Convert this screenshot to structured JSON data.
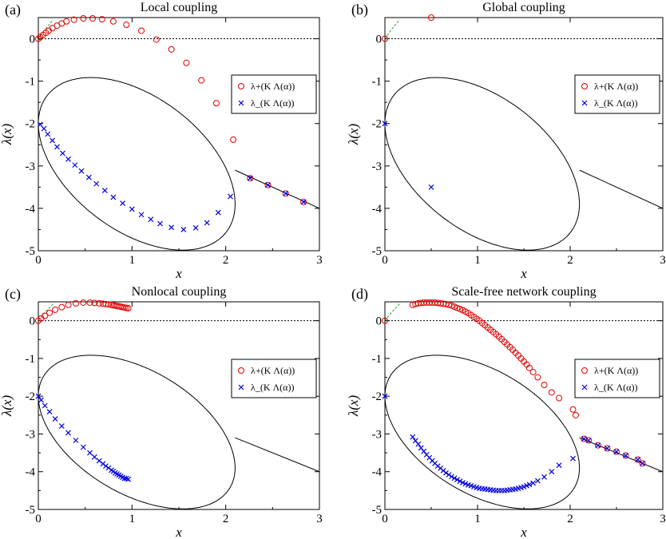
{
  "chart_data": [
    {
      "type": "scatter",
      "panel_label": "(a)",
      "title": "Local coupling",
      "xlabel": "x",
      "ylabel": "λ(x)",
      "xlim": [
        0,
        3
      ],
      "ylim": [
        -5,
        0.5
      ],
      "xticks": [
        "0",
        "1",
        "2",
        "3"
      ],
      "yticks": [
        "0",
        "-1",
        "-2",
        "-3",
        "-4",
        "-5"
      ],
      "legend_position": "right",
      "series": [
        {
          "name": "λ+(K Λ(α))",
          "marker": "circle",
          "color": "#e00000",
          "x": [
            0.0,
            0.02,
            0.05,
            0.08,
            0.11,
            0.15,
            0.2,
            0.25,
            0.3,
            0.38,
            0.48,
            0.58,
            0.68,
            0.8,
            0.94,
            1.1,
            1.26,
            1.42,
            1.58,
            1.74,
            1.9,
            2.08,
            2.26,
            2.45,
            2.64,
            2.83
          ],
          "y": [
            0.0,
            0.04,
            0.09,
            0.14,
            0.19,
            0.25,
            0.31,
            0.36,
            0.41,
            0.45,
            0.48,
            0.48,
            0.46,
            0.41,
            0.33,
            0.19,
            -0.02,
            -0.25,
            -0.57,
            -0.98,
            -1.52,
            -2.38,
            -3.29,
            -3.45,
            -3.65,
            -3.85
          ]
        },
        {
          "name": "λ_(K Λ(α))",
          "marker": "x",
          "color": "#0000e0",
          "x": [
            0.02,
            0.06,
            0.1,
            0.15,
            0.2,
            0.26,
            0.32,
            0.39,
            0.46,
            0.54,
            0.62,
            0.71,
            0.8,
            0.9,
            1.0,
            1.1,
            1.2,
            1.3,
            1.42,
            1.55,
            1.68,
            1.8,
            1.92,
            2.05,
            2.26,
            2.45,
            2.64,
            2.83
          ],
          "y": [
            -2.02,
            -2.12,
            -2.25,
            -2.4,
            -2.55,
            -2.7,
            -2.84,
            -2.98,
            -3.12,
            -3.27,
            -3.42,
            -3.58,
            -3.74,
            -3.88,
            -4.02,
            -4.15,
            -4.26,
            -4.36,
            -4.45,
            -4.5,
            -4.46,
            -4.34,
            -4.1,
            -3.72,
            -3.29,
            -3.45,
            -3.65,
            -3.85
          ]
        }
      ]
    },
    {
      "type": "scatter",
      "panel_label": "(b)",
      "title": "Global coupling",
      "xlabel": "x",
      "ylabel": "λ(x)",
      "xlim": [
        0,
        3
      ],
      "ylim": [
        -5,
        0.5
      ],
      "xticks": [
        "0",
        "1",
        "2",
        "3"
      ],
      "yticks": [
        "0",
        "-1",
        "-2",
        "-3",
        "-4",
        "-5"
      ],
      "legend_position": "right",
      "series": [
        {
          "name": "λ+(K Λ(α))",
          "marker": "circle",
          "color": "#e00000",
          "x": [
            0.0,
            0.5
          ],
          "y": [
            0.0,
            0.5
          ]
        },
        {
          "name": "λ_(K Λ(α))",
          "marker": "x",
          "color": "#0000e0",
          "x": [
            0.0,
            0.5
          ],
          "y": [
            -2.0,
            -3.5
          ]
        }
      ]
    },
    {
      "type": "scatter",
      "panel_label": "(c)",
      "title": "Nonlocal coupling",
      "xlabel": "x",
      "ylabel": "λ(x)",
      "xlim": [
        0,
        3
      ],
      "ylim": [
        -5,
        0.5
      ],
      "xticks": [
        "0",
        "1",
        "2",
        "3"
      ],
      "yticks": [
        "0",
        "-1",
        "-2",
        "-3",
        "-4",
        "-5"
      ],
      "legend_position": "right",
      "series": [
        {
          "name": "λ+(K Λ(α))",
          "marker": "circle",
          "color": "#e00000",
          "x": [
            0.0,
            0.03,
            0.07,
            0.12,
            0.18,
            0.25,
            0.32,
            0.4,
            0.48,
            0.55,
            0.6,
            0.65,
            0.69,
            0.72,
            0.75,
            0.78,
            0.8,
            0.82,
            0.84,
            0.86,
            0.88,
            0.9,
            0.92,
            0.94,
            0.96
          ],
          "y": [
            0.0,
            0.06,
            0.13,
            0.21,
            0.29,
            0.36,
            0.42,
            0.46,
            0.48,
            0.48,
            0.47,
            0.46,
            0.45,
            0.44,
            0.43,
            0.42,
            0.41,
            0.4,
            0.39,
            0.38,
            0.37,
            0.36,
            0.35,
            0.34,
            0.33
          ]
        },
        {
          "name": "λ_(K Λ(α))",
          "marker": "x",
          "color": "#0000e0",
          "x": [
            0.0,
            0.03,
            0.07,
            0.12,
            0.18,
            0.25,
            0.32,
            0.4,
            0.48,
            0.55,
            0.6,
            0.65,
            0.69,
            0.72,
            0.75,
            0.78,
            0.8,
            0.82,
            0.84,
            0.86,
            0.88,
            0.9,
            0.92,
            0.94,
            0.96
          ],
          "y": [
            -2.0,
            -2.1,
            -2.25,
            -2.41,
            -2.6,
            -2.79,
            -2.97,
            -3.17,
            -3.35,
            -3.5,
            -3.61,
            -3.71,
            -3.79,
            -3.85,
            -3.9,
            -3.96,
            -3.99,
            -4.03,
            -4.06,
            -4.09,
            -4.12,
            -4.15,
            -4.18,
            -4.18,
            -4.2
          ]
        }
      ]
    },
    {
      "type": "scatter",
      "panel_label": "(d)",
      "title": "Scale-free network coupling",
      "xlabel": "x",
      "ylabel": "λ(x)",
      "xlim": [
        0,
        3
      ],
      "ylim": [
        -5,
        0.5
      ],
      "xticks": [
        "0",
        "1",
        "2",
        "3"
      ],
      "yticks": [
        "0",
        "-1",
        "-2",
        "-3",
        "-4",
        "-5"
      ],
      "legend_position": "right",
      "series": [
        {
          "name": "λ+(K Λ(α))",
          "marker": "circle",
          "color": "#e00000",
          "x": [
            0.0,
            0.3,
            0.33,
            0.36,
            0.39,
            0.42,
            0.45,
            0.48,
            0.51,
            0.54,
            0.57,
            0.6,
            0.63,
            0.66,
            0.69,
            0.72,
            0.75,
            0.78,
            0.81,
            0.84,
            0.87,
            0.9,
            0.93,
            0.96,
            0.99,
            1.02,
            1.05,
            1.08,
            1.11,
            1.14,
            1.17,
            1.2,
            1.23,
            1.26,
            1.29,
            1.32,
            1.35,
            1.38,
            1.41,
            1.44,
            1.47,
            1.5,
            1.53,
            1.56,
            1.6,
            1.65,
            1.72,
            1.8,
            1.88,
            2.03,
            2.06,
            2.15,
            2.2,
            2.3,
            2.4,
            2.5,
            2.6,
            2.73,
            2.78
          ],
          "y": [
            0.0,
            0.42,
            0.44,
            0.46,
            0.47,
            0.48,
            0.48,
            0.48,
            0.48,
            0.48,
            0.47,
            0.46,
            0.45,
            0.44,
            0.42,
            0.4,
            0.37,
            0.34,
            0.31,
            0.28,
            0.24,
            0.2,
            0.15,
            0.1,
            0.05,
            0.0,
            -0.06,
            -0.12,
            -0.18,
            -0.24,
            -0.3,
            -0.36,
            -0.42,
            -0.49,
            -0.56,
            -0.63,
            -0.7,
            -0.77,
            -0.85,
            -0.92,
            -1.0,
            -1.08,
            -1.16,
            -1.25,
            -1.36,
            -1.5,
            -1.7,
            -1.9,
            -2.05,
            -2.35,
            -2.5,
            -3.13,
            -3.17,
            -3.3,
            -3.38,
            -3.47,
            -3.57,
            -3.68,
            -3.78
          ]
        },
        {
          "name": "λ_(K Λ(α))",
          "marker": "x",
          "color": "#0000e0",
          "x": [
            0.0,
            0.3,
            0.33,
            0.36,
            0.39,
            0.42,
            0.45,
            0.48,
            0.51,
            0.54,
            0.57,
            0.6,
            0.63,
            0.66,
            0.69,
            0.72,
            0.75,
            0.78,
            0.81,
            0.84,
            0.87,
            0.9,
            0.93,
            0.96,
            0.99,
            1.02,
            1.05,
            1.08,
            1.11,
            1.14,
            1.17,
            1.2,
            1.23,
            1.26,
            1.29,
            1.32,
            1.35,
            1.38,
            1.41,
            1.44,
            1.47,
            1.5,
            1.53,
            1.56,
            1.6,
            1.65,
            1.72,
            1.8,
            1.88,
            2.03,
            2.15,
            2.2,
            2.3,
            2.4,
            2.5,
            2.6,
            2.73,
            2.78
          ],
          "y": [
            -2.0,
            -3.08,
            -3.18,
            -3.27,
            -3.37,
            -3.46,
            -3.55,
            -3.63,
            -3.71,
            -3.78,
            -3.85,
            -3.91,
            -3.97,
            -4.03,
            -4.08,
            -4.13,
            -4.17,
            -4.21,
            -4.25,
            -4.29,
            -4.32,
            -4.35,
            -4.37,
            -4.4,
            -4.42,
            -4.44,
            -4.45,
            -4.46,
            -4.47,
            -4.48,
            -4.49,
            -4.5,
            -4.5,
            -4.5,
            -4.5,
            -4.49,
            -4.48,
            -4.47,
            -4.46,
            -4.44,
            -4.42,
            -4.4,
            -4.37,
            -4.34,
            -4.3,
            -4.24,
            -4.14,
            -4.0,
            -3.83,
            -3.65,
            -3.13,
            -3.17,
            -3.3,
            -3.38,
            -3.47,
            -3.57,
            -3.68,
            -3.78
          ]
        }
      ]
    }
  ]
}
